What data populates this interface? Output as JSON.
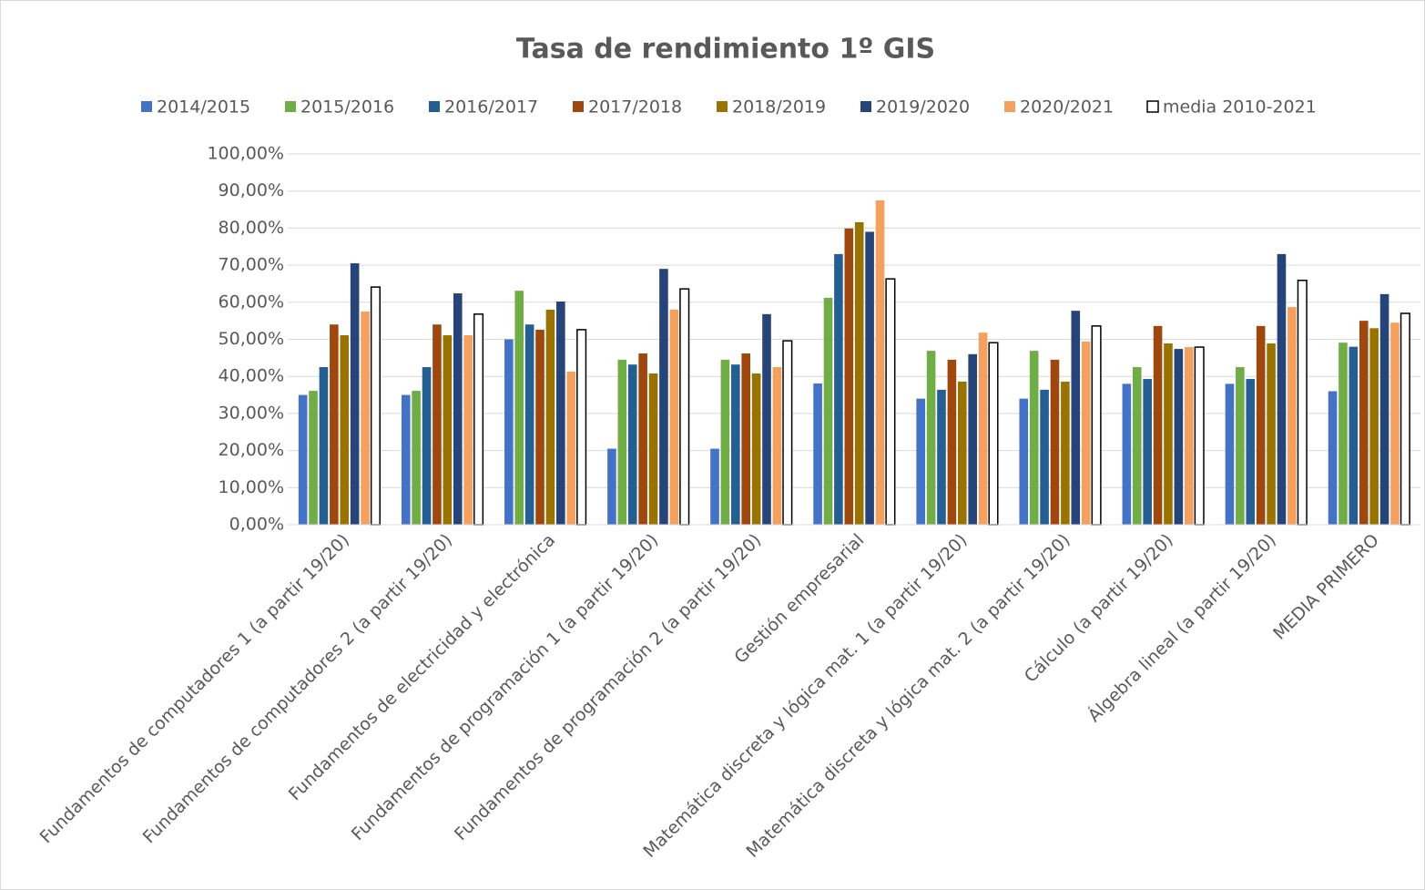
{
  "chart_data": {
    "type": "bar",
    "title": "Tasa de rendimiento 1º GIS",
    "categories": [
      "Fundamentos de computadores 1 (a partir 19/20)",
      "Fundamentos de computadores 2 (a partir 19/20)",
      "Fundamentos de electricidad y electrónica",
      "Fundamentos de programación 1 (a partir 19/20)",
      "Fundamentos de programación 2 (a partir 19/20)",
      "Gestión empresarial",
      "Matemática discreta y lógica mat. 1 (a partir 19/20)",
      "Matemática discreta y lógica mat. 2 (a partir 19/20)",
      "Cálculo (a partir 19/20)",
      "Álgebra lineal (a partir 19/20)",
      "MEDIA PRIMERO"
    ],
    "series": [
      {
        "name": "2014/2015",
        "color": "#4472c4",
        "values": [
          35,
          35,
          50,
          20.5,
          20.5,
          38.1,
          34,
          34,
          38,
          38,
          36
        ]
      },
      {
        "name": "2015/2016",
        "color": "#70ad47",
        "values": [
          36.1,
          36.1,
          63.1,
          44.5,
          44.5,
          61.2,
          46.9,
          46.9,
          42.5,
          42.5,
          49.1
        ]
      },
      {
        "name": "2016/2017",
        "color": "#255e91",
        "values": [
          42.5,
          42.5,
          54,
          43.2,
          43.2,
          73,
          36.4,
          36.4,
          39.3,
          39.3,
          48
        ]
      },
      {
        "name": "2017/2018",
        "color": "#9e480e",
        "values": [
          54,
          54,
          52.6,
          46.2,
          46.2,
          79.9,
          44.5,
          44.5,
          53.6,
          53.6,
          55
        ]
      },
      {
        "name": "2018/2019",
        "color": "#997300",
        "values": [
          51.1,
          51.1,
          58,
          40.8,
          40.8,
          81.6,
          38.6,
          38.6,
          48.9,
          48.9,
          53
        ]
      },
      {
        "name": "2019/2020",
        "color": "#264478",
        "values": [
          70.5,
          62.4,
          60.2,
          69,
          56.8,
          79,
          46,
          57.7,
          47.4,
          73,
          62.2
        ]
      },
      {
        "name": "2020/2021",
        "color": "#f4a05e",
        "values": [
          57.5,
          51.1,
          41.3,
          58,
          42.5,
          87.5,
          51.8,
          49.4,
          47.9,
          58.7,
          54.5
        ]
      },
      {
        "name": "media 2010-2021",
        "color": "#ffffff",
        "outline": "#000000",
        "values": [
          64.1,
          56.8,
          52.6,
          63.6,
          49.6,
          66.3,
          49.1,
          53.6,
          47.9,
          65.9,
          57
        ]
      }
    ],
    "ylim": [
      0,
      100
    ],
    "yticks": [
      {
        "value": 0,
        "label": "0,00%"
      },
      {
        "value": 10,
        "label": "10,00%"
      },
      {
        "value": 20,
        "label": "20,00%"
      },
      {
        "value": 30,
        "label": "30,00%"
      },
      {
        "value": 40,
        "label": "40,00%"
      },
      {
        "value": 50,
        "label": "50,00%"
      },
      {
        "value": 60,
        "label": "60,00%"
      },
      {
        "value": 70,
        "label": "70,00%"
      },
      {
        "value": 80,
        "label": "80,00%"
      },
      {
        "value": 90,
        "label": "90,00%"
      },
      {
        "value": 100,
        "label": "100,00%"
      }
    ],
    "grid": true,
    "legend": "top"
  }
}
